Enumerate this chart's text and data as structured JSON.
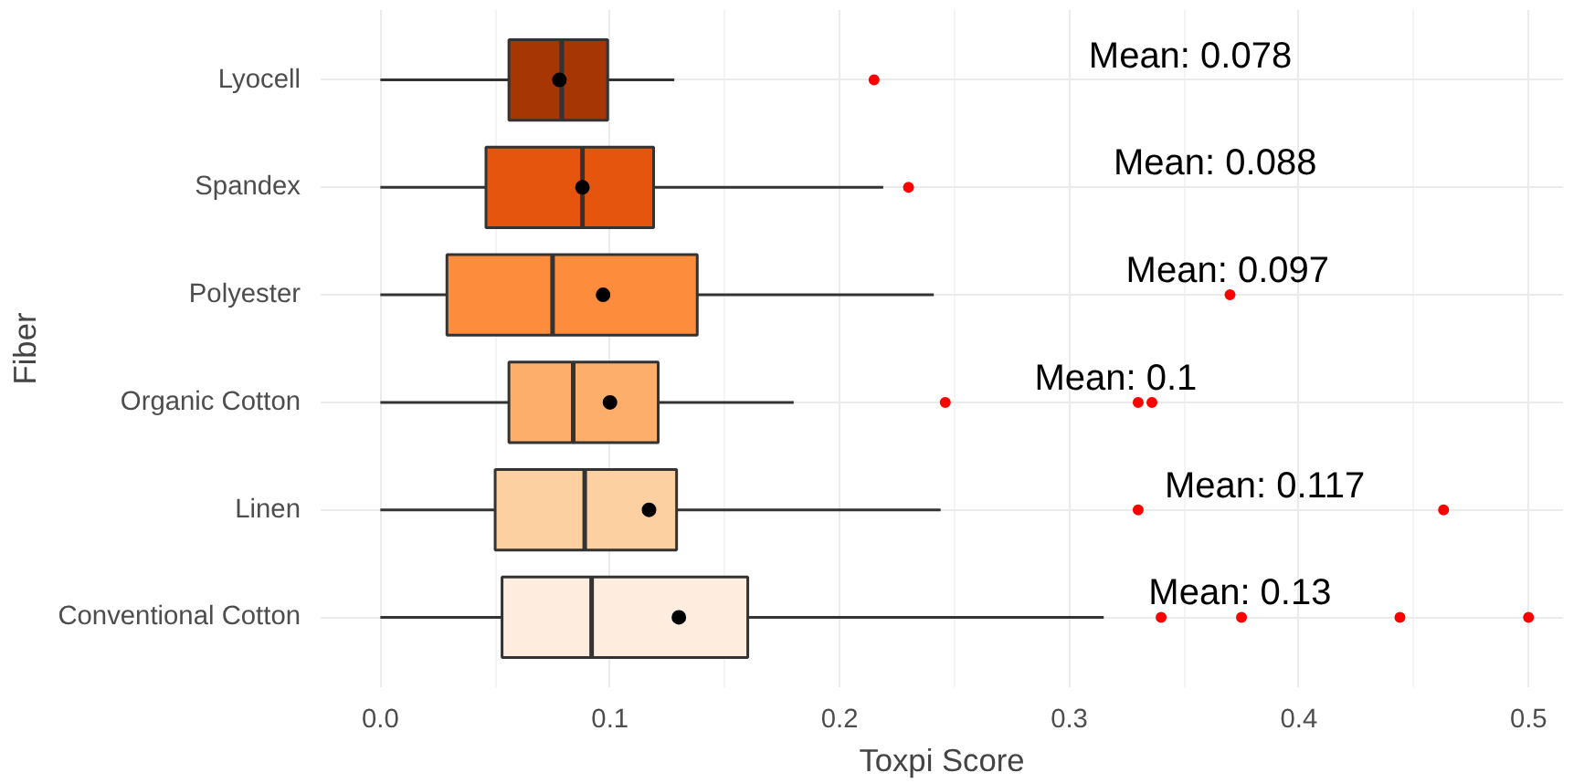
{
  "chart_data": {
    "type": "box",
    "xlabel": "Toxpi Score",
    "ylabel": "Fiber",
    "orientation": "horizontal",
    "categories": [
      "Lyocell",
      "Spandex",
      "Polyester",
      "Organic Cotton",
      "Linen",
      "Conventional Cotton"
    ],
    "colors": [
      "#a63603",
      "#e6550d",
      "#fd8d3c",
      "#fdae6b",
      "#fdd0a2",
      "#feedde"
    ],
    "boxes": [
      {
        "low": 0,
        "q1": 0.056,
        "median": 0.079,
        "q3": 0.099,
        "high": 0.128,
        "mean": 0.078,
        "outliers": [
          0.215
        ]
      },
      {
        "low": 0,
        "q1": 0.046,
        "median": 0.088,
        "q3": 0.119,
        "high": 0.219,
        "mean": 0.088,
        "outliers": [
          0.23
        ]
      },
      {
        "low": 0,
        "q1": 0.029,
        "median": 0.075,
        "q3": 0.138,
        "high": 0.241,
        "mean": 0.097,
        "outliers": [
          0.37
        ]
      },
      {
        "low": 0,
        "q1": 0.056,
        "median": 0.084,
        "q3": 0.121,
        "high": 0.18,
        "mean": 0.1,
        "outliers": [
          0.246,
          0.33,
          0.336
        ]
      },
      {
        "low": 0,
        "q1": 0.05,
        "median": 0.089,
        "q3": 0.129,
        "high": 0.244,
        "mean": 0.117,
        "outliers": [
          0.33,
          0.463
        ]
      },
      {
        "low": 0,
        "q1": 0.053,
        "median": 0.092,
        "q3": 0.16,
        "high": 0.315,
        "mean": 0.13,
        "outliers": [
          0.34,
          0.375,
          0.444,
          0.5
        ]
      }
    ],
    "annotations": [
      "Mean: 0.078",
      "Mean: 0.088",
      "Mean: 0.097",
      "Mean: 0.1",
      "Mean: 0.117",
      "Mean: 0.13"
    ],
    "xlim": [
      -0.026,
      0.515
    ],
    "xticks": [
      {
        "value": 0,
        "label": "0.0"
      },
      {
        "value": 0.1,
        "label": "0.1"
      },
      {
        "value": 0.2,
        "label": "0.2"
      },
      {
        "value": 0.3,
        "label": "0.3"
      },
      {
        "value": 0.4,
        "label": "0.4"
      },
      {
        "value": 0.5,
        "label": "0.5"
      }
    ],
    "grid": true
  }
}
